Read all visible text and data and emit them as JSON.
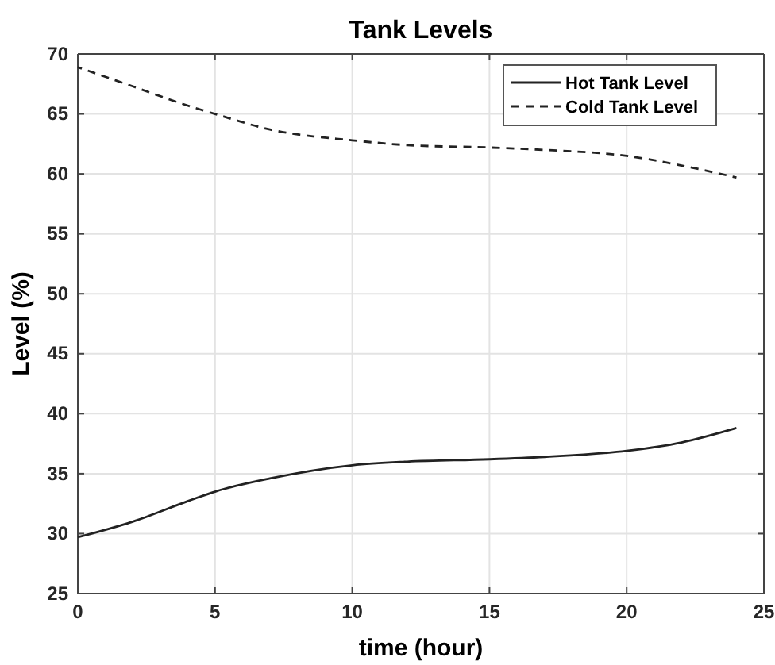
{
  "chart_data": {
    "type": "line",
    "title": "Tank Levels",
    "xlabel": "time (hour)",
    "ylabel": "Level (%)",
    "x": [
      0,
      2,
      4,
      5,
      7,
      10,
      12,
      15,
      17,
      20,
      22,
      24
    ],
    "series": [
      {
        "name": "Hot Tank Level",
        "color": "#222222",
        "line_style": "solid",
        "values": [
          29.7,
          31,
          32.7,
          33.5,
          34.6,
          35.7,
          36,
          36.2,
          36.4,
          36.9,
          37.6,
          38.8
        ]
      },
      {
        "name": "Cold Tank Level",
        "color": "#222222",
        "line_style": "dashed",
        "values": [
          68.9,
          67.3,
          65.7,
          65,
          63.7,
          62.8,
          62.4,
          62.2,
          62,
          61.5,
          60.7,
          59.7
        ]
      }
    ],
    "xlim": [
      0,
      25
    ],
    "xticks": [
      0,
      5,
      10,
      15,
      20,
      25
    ],
    "ylim": [
      25,
      70
    ],
    "yticks": [
      25,
      30,
      35,
      40,
      45,
      50,
      55,
      60,
      65,
      70
    ],
    "grid": true,
    "legend": "top right",
    "marker": "none"
  }
}
